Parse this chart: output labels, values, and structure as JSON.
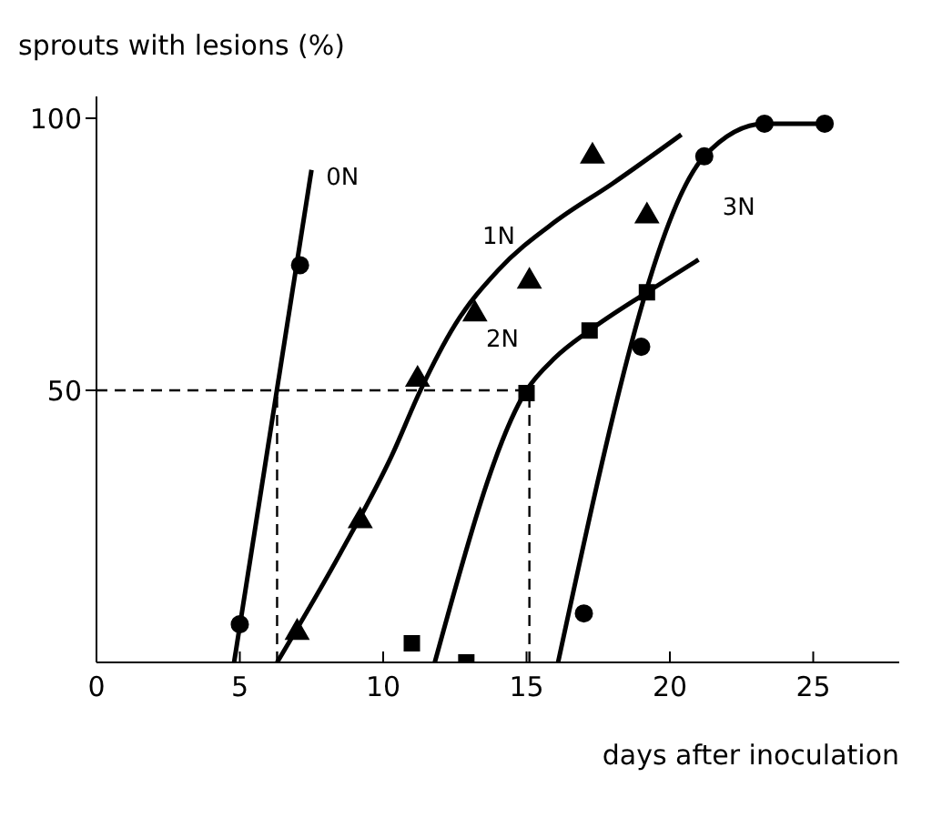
{
  "chart_data": {
    "type": "scatter",
    "ylabel": "sprouts with lesions (%)",
    "xlabel": "days after inoculation",
    "xlim": [
      0,
      28
    ],
    "xticks": [
      0,
      5,
      10,
      15,
      20,
      25
    ],
    "ylim": [
      0,
      104
    ],
    "yticks": [
      50,
      100
    ],
    "series": [
      {
        "color": "#000000",
        "marker": "circle",
        "x": [
          5.0,
          7.1
        ],
        "values": [
          7,
          73
        ]
      },
      {
        "color": "#000000",
        "marker": "triangle",
        "x": [
          7.0,
          9.2,
          11.2,
          13.2,
          15.1,
          17.3,
          19.2
        ],
        "values": [
          5.5,
          26,
          52,
          64,
          70,
          93,
          82
        ]
      },
      {
        "color": "#000000",
        "marker": "square",
        "x": [
          11.0,
          12.9,
          15.0,
          17.2,
          19.2
        ],
        "values": [
          3.5,
          0,
          49.5,
          61,
          68
        ]
      },
      {
        "color": "#000000",
        "marker": "circle",
        "x": [
          17.0,
          19.0,
          21.2,
          23.3,
          25.4
        ],
        "values": [
          9,
          58,
          93,
          99,
          99
        ]
      },
      {
        "type": "line",
        "name": "0N",
        "color": "#000000",
        "marker": "none",
        "line_style": "solid",
        "x": [
          4.8,
          7.5
        ],
        "values": [
          0,
          90.5
        ]
      },
      {
        "type": "line",
        "name": "1N",
        "color": "#000000",
        "marker": "none",
        "line_style": "solid",
        "x": [
          6.3,
          8.5,
          10.3,
          11.3,
          12.5,
          14,
          16,
          18,
          20.4
        ],
        "values": [
          0,
          20,
          38,
          50,
          62,
          72,
          81,
          88,
          97
        ]
      },
      {
        "type": "line",
        "name": "2N",
        "color": "#000000",
        "marker": "none",
        "line_style": "solid",
        "x": [
          11.8,
          15,
          16,
          17.2,
          19.2,
          21
        ],
        "values": [
          0,
          50,
          56,
          61,
          68,
          74
        ]
      },
      {
        "type": "line",
        "name": "3N",
        "color": "#000000",
        "marker": "none",
        "line_style": "solid",
        "x": [
          16.1,
          21.2,
          23.3,
          25.4
        ],
        "values": [
          0,
          93,
          99,
          99
        ]
      },
      {
        "type": "line",
        "color": "#000000",
        "marker": "none",
        "line_style": "dashed",
        "x": [
          0,
          15
        ],
        "values": [
          50,
          50
        ]
      },
      {
        "type": "line",
        "color": "#000000",
        "marker": "none",
        "line_style": "dashed",
        "x": [
          6.3,
          6.3
        ],
        "values": [
          0,
          50
        ]
      },
      {
        "type": "line",
        "color": "#000000",
        "marker": "none",
        "line_style": "dashed",
        "x": [
          15.1,
          15.1
        ],
        "values": [
          0,
          50
        ]
      }
    ]
  }
}
